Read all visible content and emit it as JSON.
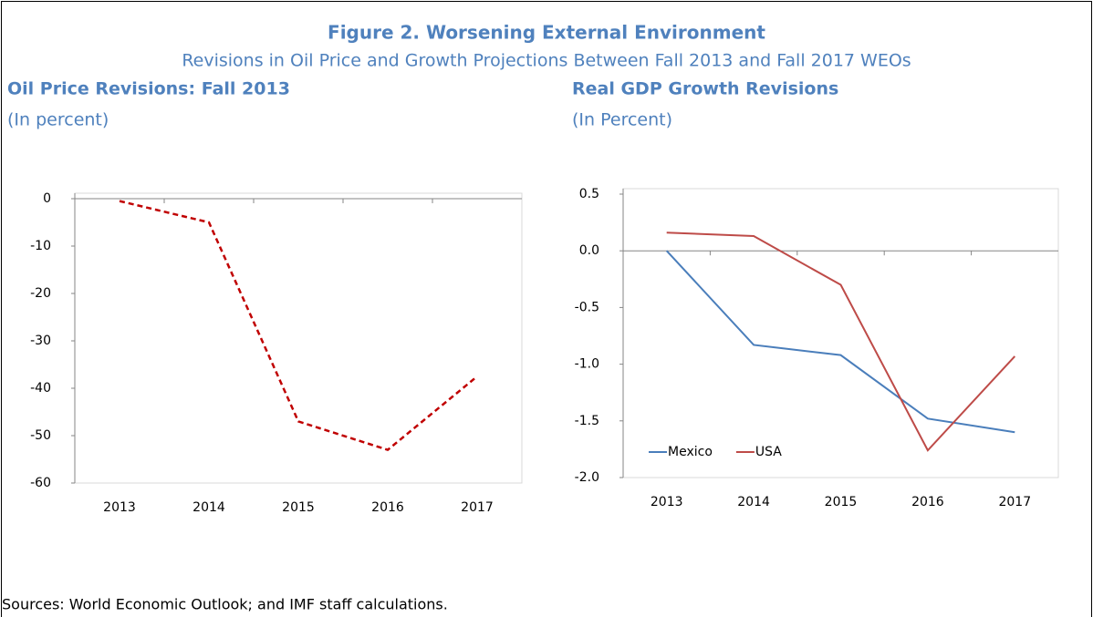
{
  "figure_title": "Figure 2. Worsening External Environment",
  "figure_subtitle": "Revisions in Oil Price and Growth Projections Between Fall 2013 and Fall 2017 WEOs",
  "source": "Sources: World Economic Outlook; and IMF staff calculations.",
  "chart_data": [
    {
      "type": "line",
      "title": "Oil Price Revisions: Fall 2013",
      "subtitle": "(In percent)",
      "categories": [
        "2013",
        "2014",
        "2015",
        "2016",
        "2017"
      ],
      "series": [
        {
          "color": "#c00000",
          "line_style": "dashed",
          "values": [
            -0.5,
            -5,
            -47,
            -53,
            -37.5
          ]
        }
      ],
      "ylim": [
        -60,
        0
      ],
      "yticks": [
        0,
        -10,
        -20,
        -30,
        -40,
        -50,
        -60
      ]
    },
    {
      "type": "line",
      "title": "Real GDP Growth Revisions",
      "subtitle": "(In Percent)",
      "categories": [
        "2013",
        "2014",
        "2015",
        "2016",
        "2017"
      ],
      "series": [
        {
          "name": "Mexico",
          "color": "#4a7ebb",
          "line_style": "solid",
          "values": [
            0,
            -0.83,
            -0.92,
            -1.48,
            -1.6
          ]
        },
        {
          "name": "USA",
          "color": "#be4b48",
          "line_style": "solid",
          "values": [
            0.16,
            0.13,
            -0.3,
            -1.76,
            -0.93
          ]
        }
      ],
      "ylim": [
        -2,
        0.5
      ],
      "yticks": [
        0.5,
        {
          "value": 0,
          "label": "0.0"
        },
        -0.5,
        {
          "value": -1,
          "label": "-1.0"
        },
        -1.5,
        {
          "value": -2,
          "label": "-2.0"
        }
      ],
      "legend": "lower left"
    }
  ]
}
